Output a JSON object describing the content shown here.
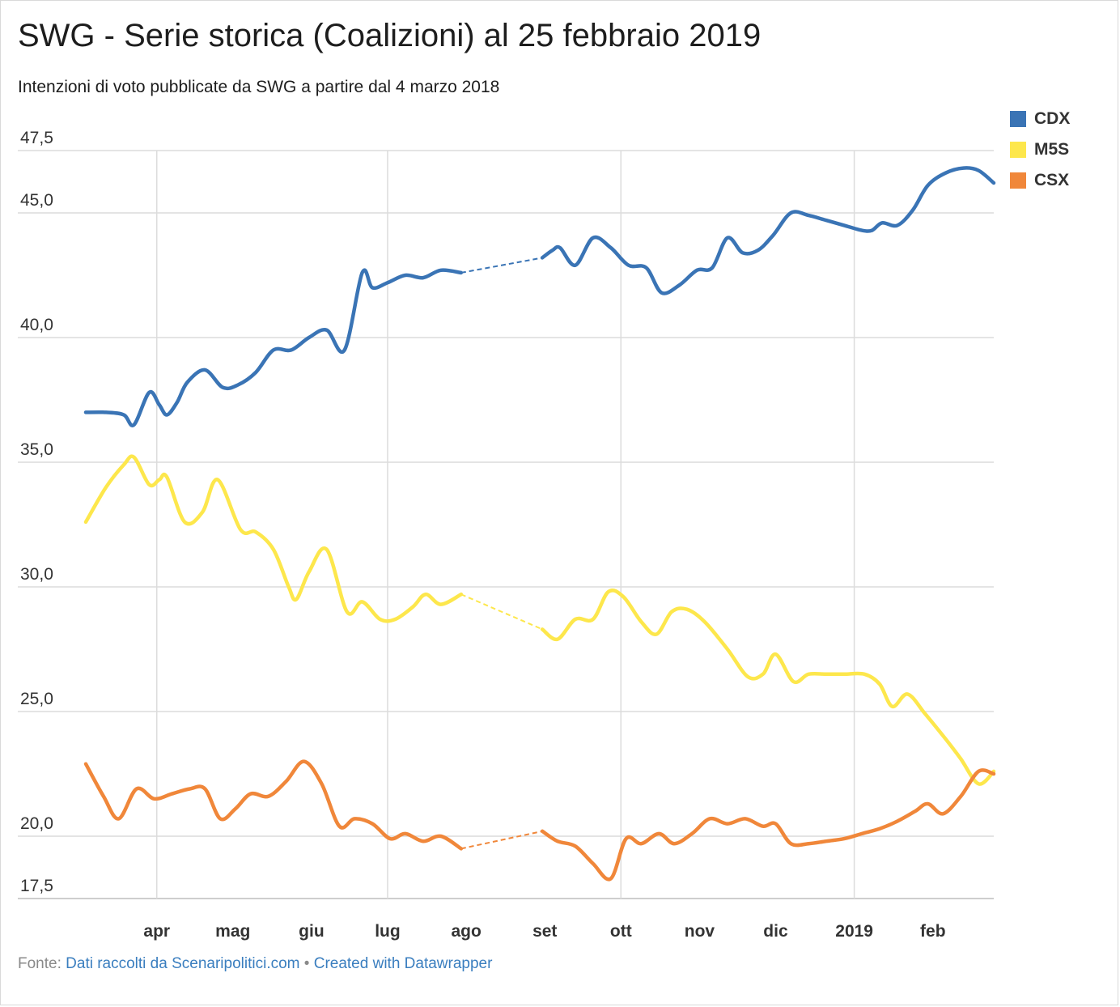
{
  "header": {
    "title": "SWG - Serie storica (Coalizioni) al 25 febbraio 2019",
    "subtitle": "Intenzioni di voto pubblicate da SWG a partire dal 4 marzo 2018"
  },
  "footer": {
    "source_prefix": "Fonte:",
    "source_link": "Dati raccolti da Scenaripolitici.com",
    "separator": "•",
    "credit_link": "Created with Datawrapper"
  },
  "chart_data": {
    "type": "line",
    "title": "SWG - Serie storica (Coalizioni) al 25 febbraio 2019",
    "subtitle": "Intenzioni di voto pubblicate da SWG a partire dal 4 marzo 2018",
    "xlabel": "",
    "ylabel": "",
    "xlim": [
      "2018-03-04",
      "2019-02-25"
    ],
    "ylim": [
      17.5,
      47.5
    ],
    "y_ticks": [
      "47,5",
      "45,0",
      "40,0",
      "35,0",
      "30,0",
      "25,0",
      "20,0",
      "17,5"
    ],
    "y_tick_values": [
      47.5,
      45.0,
      40.0,
      35.0,
      30.0,
      25.0,
      20.0,
      17.5
    ],
    "x_ticks": [
      {
        "label": "apr",
        "date": "2018-04-01"
      },
      {
        "label": "mag",
        "date": "2018-05-01"
      },
      {
        "label": "giu",
        "date": "2018-06-01"
      },
      {
        "label": "lug",
        "date": "2018-07-01"
      },
      {
        "label": "ago",
        "date": "2018-08-01"
      },
      {
        "label": "set",
        "date": "2018-09-01"
      },
      {
        "label": "ott",
        "date": "2018-10-01"
      },
      {
        "label": "nov",
        "date": "2018-11-01"
      },
      {
        "label": "dic",
        "date": "2018-12-01"
      },
      {
        "label": "2019",
        "date": "2019-01-01"
      },
      {
        "label": "feb",
        "date": "2019-02-01"
      }
    ],
    "gridlines": [
      "2018-04-01",
      "2018-07-01",
      "2018-10-01",
      "2019-01-01"
    ],
    "grid": true,
    "legend_position": "top-right",
    "gap": {
      "from": "2018-07-30",
      "to": "2018-08-31",
      "style": "dashed"
    },
    "series": [
      {
        "name": "CDX",
        "color": "#3a74b5",
        "points": [
          [
            "2018-03-04",
            37.0
          ],
          [
            "2018-03-12",
            37.0
          ],
          [
            "2018-03-19",
            36.9
          ],
          [
            "2018-03-23",
            36.5
          ],
          [
            "2018-03-29",
            37.8
          ],
          [
            "2018-04-02",
            37.3
          ],
          [
            "2018-04-05",
            36.9
          ],
          [
            "2018-04-09",
            37.4
          ],
          [
            "2018-04-13",
            38.2
          ],
          [
            "2018-04-20",
            38.7
          ],
          [
            "2018-04-27",
            38.0
          ],
          [
            "2018-05-03",
            38.1
          ],
          [
            "2018-05-10",
            38.6
          ],
          [
            "2018-05-17",
            39.5
          ],
          [
            "2018-05-24",
            39.5
          ],
          [
            "2018-05-31",
            40.0
          ],
          [
            "2018-06-07",
            40.3
          ],
          [
            "2018-06-14",
            39.5
          ],
          [
            "2018-06-21",
            42.6
          ],
          [
            "2018-06-25",
            42.0
          ],
          [
            "2018-07-01",
            42.2
          ],
          [
            "2018-07-08",
            42.5
          ],
          [
            "2018-07-15",
            42.4
          ],
          [
            "2018-07-22",
            42.7
          ],
          [
            "2018-07-30",
            42.6
          ],
          [
            "2018-08-31",
            43.2
          ],
          [
            "2018-09-04",
            43.5
          ],
          [
            "2018-09-07",
            43.6
          ],
          [
            "2018-09-13",
            42.9
          ],
          [
            "2018-09-20",
            44.0
          ],
          [
            "2018-09-27",
            43.6
          ],
          [
            "2018-10-04",
            42.9
          ],
          [
            "2018-10-11",
            42.8
          ],
          [
            "2018-10-17",
            41.8
          ],
          [
            "2018-10-24",
            42.1
          ],
          [
            "2018-10-31",
            42.7
          ],
          [
            "2018-11-06",
            42.8
          ],
          [
            "2018-11-12",
            44.0
          ],
          [
            "2018-11-18",
            43.4
          ],
          [
            "2018-11-24",
            43.5
          ],
          [
            "2018-11-30",
            44.1
          ],
          [
            "2018-12-07",
            45.0
          ],
          [
            "2018-12-14",
            44.9
          ],
          [
            "2018-12-21",
            44.7
          ],
          [
            "2018-12-28",
            44.5
          ],
          [
            "2019-01-04",
            44.3
          ],
          [
            "2019-01-08",
            44.3
          ],
          [
            "2019-01-12",
            44.6
          ],
          [
            "2019-01-18",
            44.5
          ],
          [
            "2019-01-24",
            45.1
          ],
          [
            "2019-01-30",
            46.1
          ],
          [
            "2019-02-06",
            46.6
          ],
          [
            "2019-02-13",
            46.8
          ],
          [
            "2019-02-19",
            46.7
          ],
          [
            "2019-02-25",
            46.2
          ]
        ]
      },
      {
        "name": "M5S",
        "color": "#fde74c",
        "points": [
          [
            "2018-03-04",
            32.6
          ],
          [
            "2018-03-12",
            34.0
          ],
          [
            "2018-03-19",
            34.9
          ],
          [
            "2018-03-23",
            35.2
          ],
          [
            "2018-03-29",
            34.1
          ],
          [
            "2018-04-02",
            34.3
          ],
          [
            "2018-04-05",
            34.4
          ],
          [
            "2018-04-12",
            32.6
          ],
          [
            "2018-04-19",
            33.0
          ],
          [
            "2018-04-25",
            34.3
          ],
          [
            "2018-05-04",
            32.3
          ],
          [
            "2018-05-10",
            32.2
          ],
          [
            "2018-05-17",
            31.5
          ],
          [
            "2018-05-23",
            30.0
          ],
          [
            "2018-05-26",
            29.5
          ],
          [
            "2018-05-31",
            30.6
          ],
          [
            "2018-06-07",
            31.5
          ],
          [
            "2018-06-15",
            29.0
          ],
          [
            "2018-06-21",
            29.4
          ],
          [
            "2018-06-28",
            28.7
          ],
          [
            "2018-07-04",
            28.7
          ],
          [
            "2018-07-11",
            29.2
          ],
          [
            "2018-07-16",
            29.7
          ],
          [
            "2018-07-22",
            29.3
          ],
          [
            "2018-07-30",
            29.7
          ],
          [
            "2018-08-31",
            28.3
          ],
          [
            "2018-09-06",
            27.9
          ],
          [
            "2018-09-13",
            28.7
          ],
          [
            "2018-09-20",
            28.7
          ],
          [
            "2018-09-26",
            29.8
          ],
          [
            "2018-10-02",
            29.6
          ],
          [
            "2018-10-09",
            28.6
          ],
          [
            "2018-10-15",
            28.1
          ],
          [
            "2018-10-21",
            29.0
          ],
          [
            "2018-10-27",
            29.1
          ],
          [
            "2018-11-03",
            28.6
          ],
          [
            "2018-11-12",
            27.5
          ],
          [
            "2018-11-20",
            26.4
          ],
          [
            "2018-11-26",
            26.5
          ],
          [
            "2018-12-01",
            27.3
          ],
          [
            "2018-12-08",
            26.2
          ],
          [
            "2018-12-14",
            26.5
          ],
          [
            "2018-12-21",
            26.5
          ],
          [
            "2018-12-28",
            26.5
          ],
          [
            "2019-01-05",
            26.5
          ],
          [
            "2019-01-11",
            26.1
          ],
          [
            "2019-01-16",
            25.2
          ],
          [
            "2019-01-22",
            25.7
          ],
          [
            "2019-01-29",
            24.9
          ],
          [
            "2019-02-06",
            23.9
          ],
          [
            "2019-02-12",
            23.1
          ],
          [
            "2019-02-19",
            22.1
          ],
          [
            "2019-02-25",
            22.6
          ]
        ]
      },
      {
        "name": "CSX",
        "color": "#f0873a",
        "points": [
          [
            "2018-03-04",
            22.9
          ],
          [
            "2018-03-11",
            21.6
          ],
          [
            "2018-03-17",
            20.7
          ],
          [
            "2018-03-24",
            21.9
          ],
          [
            "2018-03-31",
            21.5
          ],
          [
            "2018-04-07",
            21.7
          ],
          [
            "2018-04-14",
            21.9
          ],
          [
            "2018-04-20",
            21.9
          ],
          [
            "2018-04-26",
            20.7
          ],
          [
            "2018-05-02",
            21.1
          ],
          [
            "2018-05-08",
            21.7
          ],
          [
            "2018-05-15",
            21.6
          ],
          [
            "2018-05-22",
            22.2
          ],
          [
            "2018-05-29",
            23.0
          ],
          [
            "2018-06-05",
            22.1
          ],
          [
            "2018-06-12",
            20.4
          ],
          [
            "2018-06-18",
            20.7
          ],
          [
            "2018-06-25",
            20.5
          ],
          [
            "2018-07-02",
            19.9
          ],
          [
            "2018-07-08",
            20.1
          ],
          [
            "2018-07-15",
            19.8
          ],
          [
            "2018-07-22",
            20.0
          ],
          [
            "2018-07-30",
            19.5
          ],
          [
            "2018-08-31",
            20.2
          ],
          [
            "2018-09-06",
            19.8
          ],
          [
            "2018-09-13",
            19.6
          ],
          [
            "2018-09-20",
            18.9
          ],
          [
            "2018-09-27",
            18.3
          ],
          [
            "2018-10-03",
            19.9
          ],
          [
            "2018-10-09",
            19.7
          ],
          [
            "2018-10-16",
            20.1
          ],
          [
            "2018-10-22",
            19.7
          ],
          [
            "2018-10-29",
            20.1
          ],
          [
            "2018-11-05",
            20.7
          ],
          [
            "2018-11-12",
            20.5
          ],
          [
            "2018-11-19",
            20.7
          ],
          [
            "2018-11-26",
            20.4
          ],
          [
            "2018-12-01",
            20.5
          ],
          [
            "2018-12-07",
            19.7
          ],
          [
            "2018-12-14",
            19.7
          ],
          [
            "2018-12-21",
            19.8
          ],
          [
            "2018-12-28",
            19.9
          ],
          [
            "2019-01-04",
            20.1
          ],
          [
            "2019-01-11",
            20.3
          ],
          [
            "2019-01-18",
            20.6
          ],
          [
            "2019-01-25",
            21.0
          ],
          [
            "2019-01-30",
            21.3
          ],
          [
            "2019-02-05",
            20.9
          ],
          [
            "2019-02-12",
            21.6
          ],
          [
            "2019-02-19",
            22.6
          ],
          [
            "2019-02-25",
            22.5
          ]
        ]
      }
    ]
  }
}
